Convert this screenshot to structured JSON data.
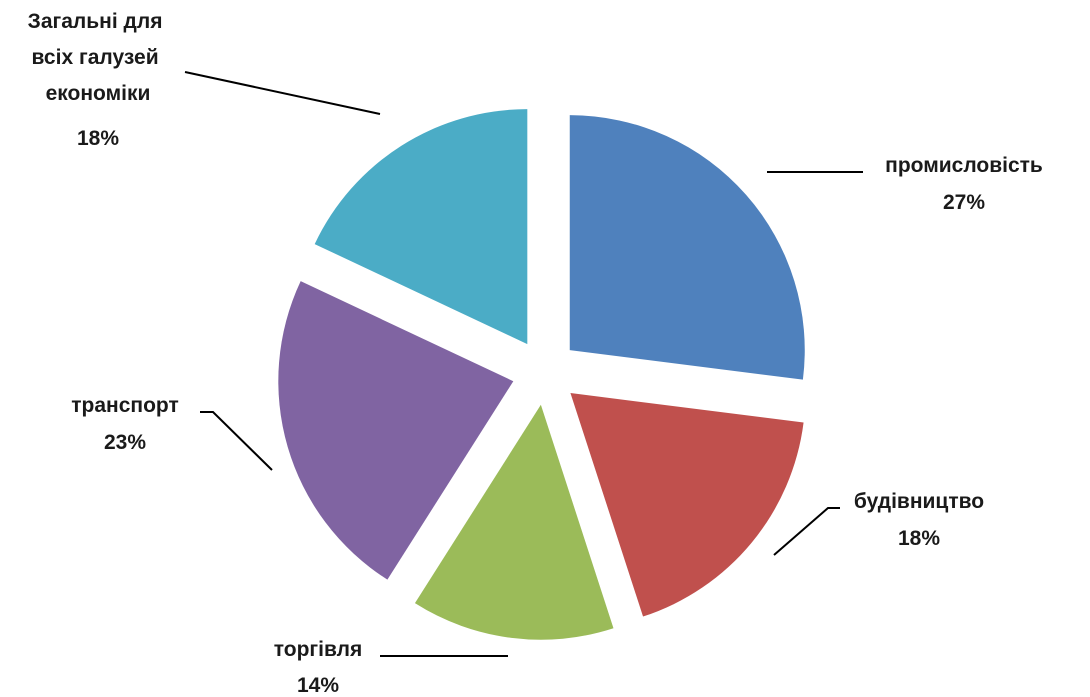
{
  "chart_data": {
    "type": "pie",
    "exploded": true,
    "title": "",
    "legend": "none",
    "slices": [
      {
        "label": "промисловість",
        "value": 27,
        "value_label": "27%",
        "color": "#4F81BD"
      },
      {
        "label": "будівництво",
        "value": 18,
        "value_label": "18%",
        "color": "#C0504D"
      },
      {
        "label": "торгівля",
        "value": 14,
        "value_label": "14%",
        "color": "#9BBB59"
      },
      {
        "label": "транспорт",
        "value": 23,
        "value_label": "23%",
        "color": "#8064A2"
      },
      {
        "label": "Загальні для всіх галузей економіки",
        "label_lines": [
          "Загальні для",
          "всіх галузей",
          "економіки"
        ],
        "value": 18,
        "value_label": "18%",
        "color": "#4BACC6"
      }
    ]
  }
}
